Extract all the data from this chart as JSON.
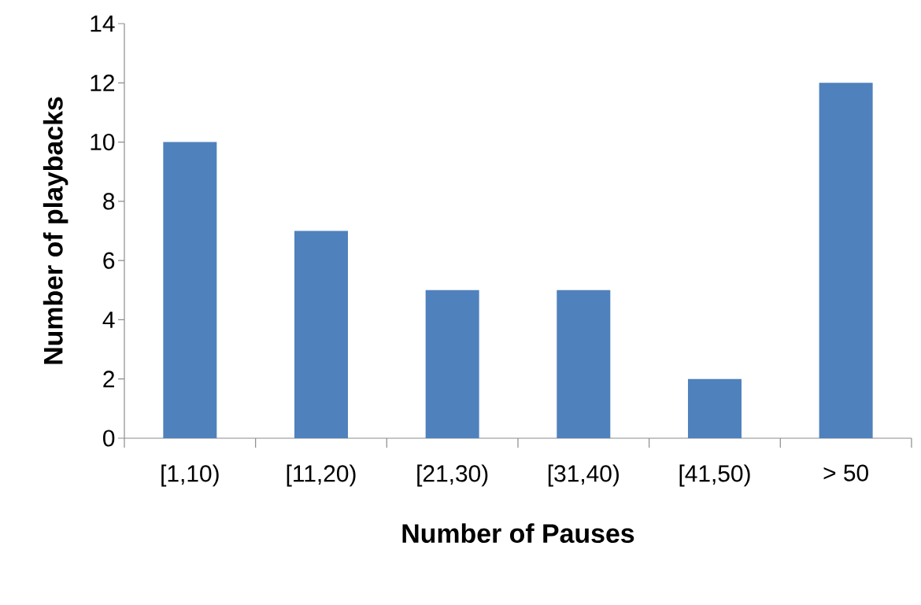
{
  "chart_data": {
    "type": "bar",
    "xlabel": "Number of Pauses",
    "ylabel": "Number of playbacks",
    "categories": [
      "[1,10)",
      "[11,20)",
      "[21,30)",
      "[31,40)",
      "[41,50)",
      "> 50"
    ],
    "values": [
      10,
      7,
      5,
      5,
      2,
      12
    ],
    "color": "#4f81bd",
    "ylim": [
      0,
      14
    ],
    "yticks": [
      0,
      2,
      4,
      6,
      8,
      10,
      12,
      14
    ],
    "grid": false
  }
}
